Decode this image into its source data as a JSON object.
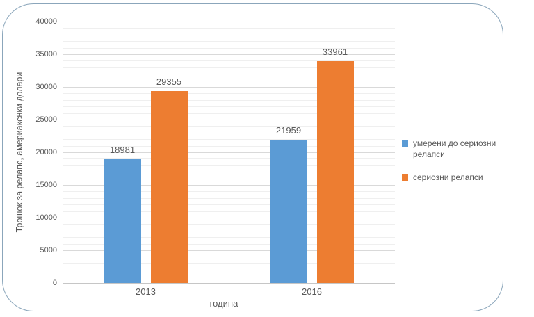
{
  "frame": {
    "border_color": "#8BA6BB"
  },
  "chart_data": {
    "type": "bar",
    "categories": [
      "2013",
      "2016"
    ],
    "series": [
      {
        "name": "умерени до сериозни релапси",
        "color": "#5B9BD5",
        "values": [
          18981,
          21959
        ]
      },
      {
        "name": "сериозни релапси",
        "color": "#ED7D31",
        "values": [
          29355,
          33961
        ]
      }
    ],
    "title": "",
    "xlabel": "година",
    "ylabel": "Трошок за релапс, америакснки долари",
    "ylim": [
      0,
      40000
    ],
    "y_major_step": 5000,
    "y_minor_step": 1000,
    "y_tick_labels": [
      "0",
      "5000",
      "10000",
      "15000",
      "20000",
      "25000",
      "30000",
      "35000",
      "40000"
    ],
    "grid": "major and minor horizontal gridlines",
    "legend_position": "right",
    "data_labels_shown": true
  },
  "styles": {
    "text_color": "#595959",
    "major_gridline_color": "#D9D9D9",
    "minor_gridline_color": "#EFEFEF",
    "axis_line_color": "#C6C6C6"
  }
}
